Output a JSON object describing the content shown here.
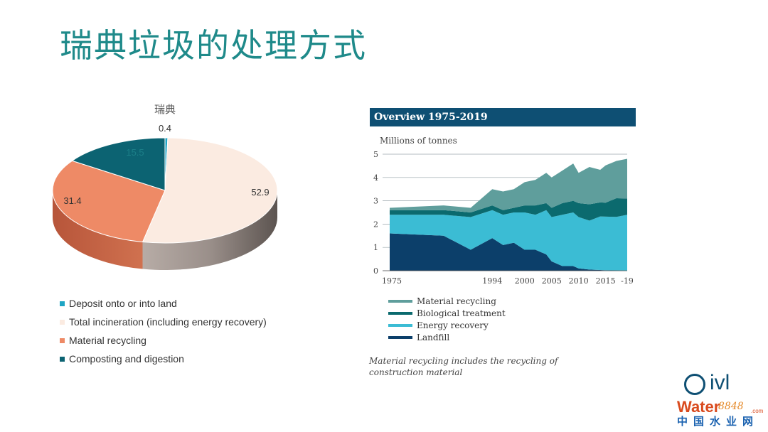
{
  "slide": {
    "title": "瑞典垃圾的处理方式"
  },
  "pie": {
    "title": "瑞典",
    "slices": [
      {
        "label": "Deposit onto or into land",
        "value": 0.4,
        "color": "#1ea5c4"
      },
      {
        "label": "Total incineration (including energy recovery)",
        "value": 52.9,
        "color": "#fbebe1"
      },
      {
        "label": "Material recycling",
        "value": 31.4,
        "color": "#ee8a66"
      },
      {
        "label": "Composting and digestion",
        "value": 15.5,
        "color": "#0c6372"
      }
    ]
  },
  "panel": {
    "header": "Overview 1975-2019",
    "units": "Millions of tonnes",
    "footnote": "Material recycling includes the recycling of construction material"
  },
  "chart_data": [
    {
      "type": "pie",
      "title": "瑞典",
      "categories": [
        "Deposit onto or into land",
        "Total incineration (including energy recovery)",
        "Material recycling",
        "Composting and digestion"
      ],
      "values": [
        0.4,
        52.9,
        31.4,
        15.5
      ]
    },
    {
      "type": "area",
      "title": "Overview 1975-2019",
      "ylabel": "Millions of tonnes",
      "ylim": [
        0,
        5
      ],
      "yticks": [
        "0",
        "1",
        "2",
        "3",
        "4",
        "5"
      ],
      "xtick_labels": [
        "1975",
        "1994",
        "2000",
        "2005",
        "2010",
        "2015",
        "-19"
      ],
      "x": [
        "1975",
        "1985",
        "1990",
        "1994",
        "1996",
        "1998",
        "2000",
        "2002",
        "2004",
        "2005",
        "2007",
        "2009",
        "2010",
        "2012",
        "2014",
        "2015",
        "2017",
        "2019"
      ],
      "series": [
        {
          "name": "Landfill",
          "color": "#0c3f6a",
          "values": [
            1.6,
            1.5,
            0.9,
            1.4,
            1.1,
            1.2,
            0.9,
            0.9,
            0.7,
            0.4,
            0.2,
            0.2,
            0.1,
            0.05,
            0.03,
            0.02,
            0.01,
            0.0
          ]
        },
        {
          "name": "Energy recovery",
          "color": "#3bbcd4",
          "values": [
            0.8,
            0.9,
            1.4,
            1.2,
            1.3,
            1.3,
            1.6,
            1.5,
            1.9,
            1.9,
            2.2,
            2.3,
            2.2,
            2.1,
            2.3,
            2.3,
            2.3,
            2.4
          ]
        },
        {
          "name": "Biological treatment",
          "color": "#0b6a6e",
          "values": [
            0.2,
            0.2,
            0.2,
            0.2,
            0.2,
            0.2,
            0.3,
            0.4,
            0.3,
            0.4,
            0.5,
            0.5,
            0.6,
            0.7,
            0.6,
            0.6,
            0.8,
            0.7
          ]
        },
        {
          "name": "Material recycling",
          "color": "#5f9e9c",
          "values": [
            0.1,
            0.2,
            0.2,
            0.7,
            0.8,
            0.8,
            1.0,
            1.1,
            1.3,
            1.3,
            1.4,
            1.6,
            1.3,
            1.6,
            1.4,
            1.6,
            1.6,
            1.7
          ]
        }
      ]
    }
  ]
}
